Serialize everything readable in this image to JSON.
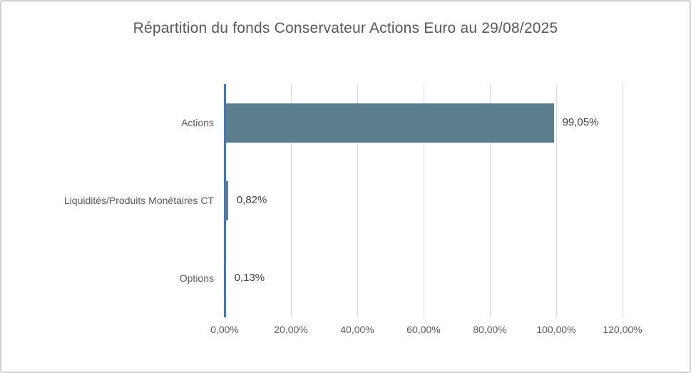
{
  "title": "Répartition du fonds Conservateur Actions Euro au 29/08/2025",
  "chart_data": {
    "type": "bar",
    "orientation": "horizontal",
    "title": "Répartition du fonds Conservateur Actions Euro au 29/08/2025",
    "categories": [
      "Actions",
      "Liquidités/Produits Monétaires CT",
      "Options"
    ],
    "values": [
      99.05,
      0.82,
      0.13
    ],
    "value_labels": [
      "99,05%",
      "0,82%",
      "0,13%"
    ],
    "x_tick_labels": [
      "0,00%",
      "20,00%",
      "40,00%",
      "60,00%",
      "80,00%",
      "100,00%",
      "120,00%"
    ],
    "x_tick_values": [
      0,
      20,
      40,
      60,
      80,
      100,
      120
    ],
    "xlim": [
      0,
      120
    ],
    "grid": true,
    "legend": "none",
    "colors": {
      "bar": "#5a7e8c",
      "value_axis_line": "#4472c4",
      "gridline": "#d9d9d9",
      "title_text": "#595959",
      "label_text": "#595959",
      "value_label_text": "#404040"
    }
  }
}
